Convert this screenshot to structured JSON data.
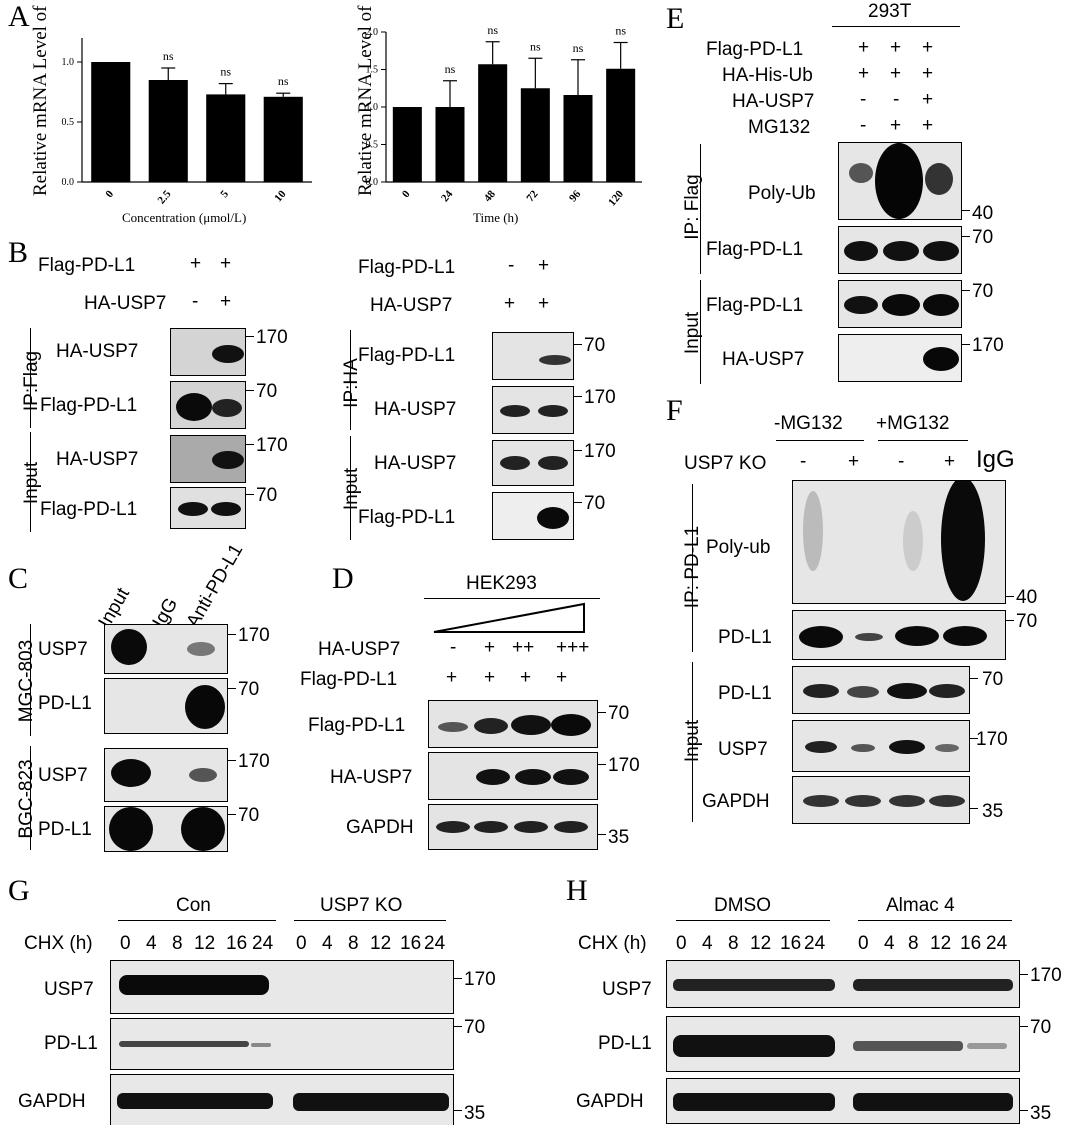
{
  "panel_labels": {
    "A": "A",
    "B": "B",
    "C": "C",
    "D": "D",
    "E": "E",
    "F": "F",
    "G": "G",
    "H": "H"
  },
  "chart_data": [
    {
      "type": "bar",
      "ylabel": "Relative mRNA Level of PD-L1",
      "xlabel": "Concentration (μmol/L)",
      "categories": [
        "0",
        "2.5",
        "5",
        "10"
      ],
      "values": [
        1.0,
        0.85,
        0.73,
        0.71
      ],
      "errors": [
        0.0,
        0.1,
        0.09,
        0.03
      ],
      "annotations": [
        "",
        "ns",
        "ns",
        "ns"
      ],
      "ylim": [
        0,
        1.2
      ],
      "yticks": [
        "0.0",
        "0.5",
        "1.0"
      ]
    },
    {
      "type": "bar",
      "ylabel": "Relative mRNA Level of PD-L1",
      "xlabel": "Time (h)",
      "categories": [
        "0",
        "24",
        "48",
        "72",
        "96",
        "120"
      ],
      "values": [
        1.0,
        1.0,
        1.57,
        1.25,
        1.16,
        1.51
      ],
      "errors": [
        0.0,
        0.35,
        0.3,
        0.4,
        0.47,
        0.35
      ],
      "annotations": [
        "",
        "ns",
        "ns",
        "ns",
        "ns",
        "ns"
      ],
      "ylim": [
        0,
        2.0
      ],
      "yticks": [
        "0.0",
        "0.5",
        "1.0",
        "1.5",
        "2.0"
      ]
    }
  ],
  "B": {
    "left": {
      "rows": [
        {
          "label": "Flag-PD-L1",
          "marks": [
            "+",
            "+"
          ]
        },
        {
          "label": "HA-USP7",
          "marks": [
            "-",
            "+"
          ]
        }
      ],
      "groups": [
        "IP:Flag",
        "Input"
      ],
      "blots": [
        "HA-USP7",
        "Flag-PD-L1",
        "HA-USP7",
        "Flag-PD-L1"
      ],
      "mw": [
        "170",
        "70",
        "170",
        "70"
      ]
    },
    "right": {
      "rows": [
        {
          "label": "Flag-PD-L1",
          "marks": [
            "-",
            "+"
          ]
        },
        {
          "label": "HA-USP7",
          "marks": [
            "+",
            "+"
          ]
        }
      ],
      "groups": [
        "IP:HA",
        "Input"
      ],
      "blots": [
        "Flag-PD-L1",
        "HA-USP7",
        "HA-USP7",
        "Flag-PD-L1"
      ],
      "mw": [
        "70",
        "170",
        "170",
        "70"
      ]
    }
  },
  "C": {
    "lanes": [
      "Input",
      "IgG",
      "Anti-PD-L1"
    ],
    "groups": [
      "MGC-803",
      "BGC-823"
    ],
    "blots": [
      "USP7",
      "PD-L1",
      "USP7",
      "PD-L1"
    ],
    "mw": [
      "170",
      "70",
      "170",
      "70"
    ]
  },
  "D": {
    "cell": "HEK293",
    "rows": [
      {
        "label": "HA-USP7",
        "marks": [
          "-",
          "+",
          "++",
          "+++"
        ]
      },
      {
        "label": "Flag-PD-L1",
        "marks": [
          "+",
          "+",
          "+",
          "+"
        ]
      }
    ],
    "blots": [
      "Flag-PD-L1",
      "HA-USP7",
      "GAPDH"
    ],
    "mw": [
      "70",
      "170",
      "35"
    ]
  },
  "E": {
    "cell": "293T",
    "rows": [
      {
        "label": "Flag-PD-L1",
        "marks": [
          "+",
          "+",
          "+"
        ]
      },
      {
        "label": "HA-His-Ub",
        "marks": [
          "+",
          "+",
          "+"
        ]
      },
      {
        "label": "HA-USP7",
        "marks": [
          "-",
          "-",
          "+"
        ]
      },
      {
        "label": "MG132",
        "marks": [
          "-",
          "+",
          "+"
        ]
      }
    ],
    "groups": [
      "IP: Flag",
      "Input"
    ],
    "blots": [
      "Poly-Ub",
      "Flag-PD-L1",
      "Flag-PD-L1",
      "HA-USP7"
    ],
    "mw": [
      "40",
      "70",
      "70",
      "170"
    ]
  },
  "F": {
    "conditions": [
      "-MG132",
      "+MG132"
    ],
    "row_label": "USP7 KO",
    "marks": [
      "-",
      "+",
      "-",
      "+"
    ],
    "igg": "IgG",
    "groups": [
      "IP: PD-L1",
      "Input"
    ],
    "blots": [
      "Poly-ub",
      "PD-L1",
      "PD-L1",
      "USP7",
      "GAPDH"
    ],
    "mw": [
      "40",
      "70",
      "70",
      "170",
      "35"
    ]
  },
  "G": {
    "groups": [
      "Con",
      "USP7 KO"
    ],
    "chx_label": "CHX (h)",
    "times": [
      "0",
      "4",
      "8",
      "12",
      "16",
      "24"
    ],
    "blots": [
      "USP7",
      "PD-L1",
      "GAPDH"
    ],
    "mw": [
      "170",
      "70",
      "35"
    ]
  },
  "H": {
    "groups": [
      "DMSO",
      "Almac 4"
    ],
    "chx_label": "CHX (h)",
    "times": [
      "0",
      "4",
      "8",
      "12",
      "16",
      "24"
    ],
    "blots": [
      "USP7",
      "PD-L1",
      "GAPDH"
    ],
    "mw": [
      "170",
      "70",
      "35"
    ]
  }
}
